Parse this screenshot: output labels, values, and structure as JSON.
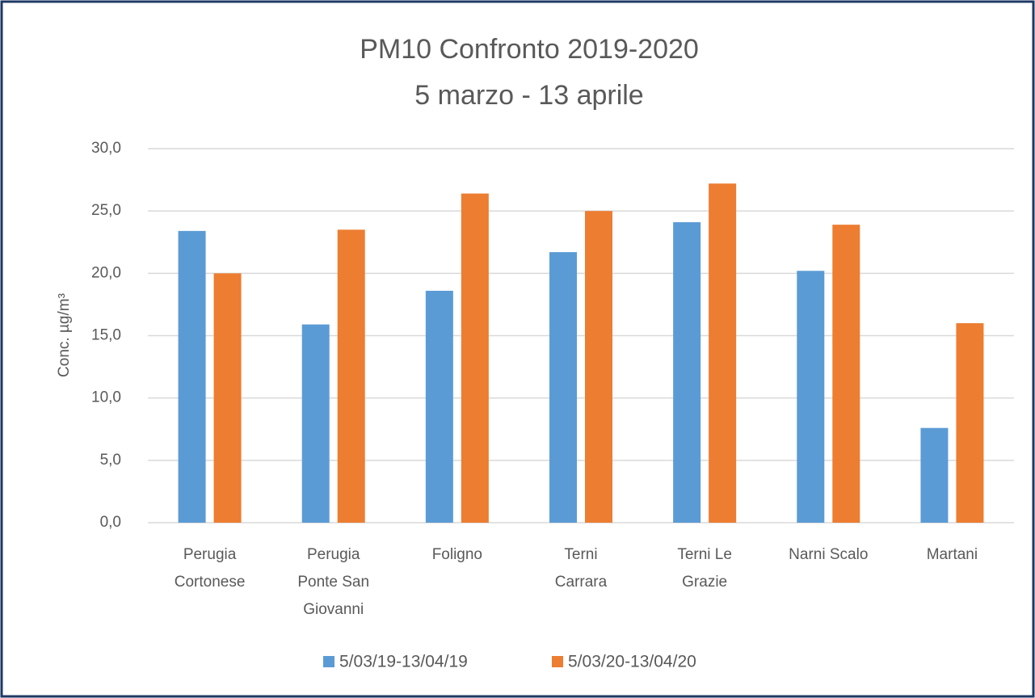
{
  "chart_data": {
    "type": "bar",
    "title": [
      "PM10 Confronto 2019-2020",
      "5 marzo - 13 aprile"
    ],
    "ylabel": "Conc. µg/m³",
    "categories": [
      [
        "Perugia",
        "Cortonese"
      ],
      [
        "Perugia",
        "Ponte San",
        "Giovanni"
      ],
      [
        "Foligno"
      ],
      [
        "Terni",
        "Carrara"
      ],
      [
        "Terni Le",
        "Grazie"
      ],
      [
        "Narni Scalo"
      ],
      [
        "Martani"
      ]
    ],
    "series": [
      {
        "name": "5/03/19-13/04/19",
        "color": "#5b9bd5",
        "values": [
          23.4,
          15.9,
          18.6,
          21.7,
          24.1,
          20.2,
          7.6
        ]
      },
      {
        "name": "5/03/20-13/04/20",
        "color": "#ed7d31",
        "values": [
          20.0,
          23.5,
          26.4,
          25.0,
          27.2,
          23.9,
          16.0
        ]
      }
    ],
    "ylim": [
      0,
      30
    ],
    "yticks": [
      {
        "value": 0,
        "label": "0,0"
      },
      {
        "value": 5,
        "label": "5,0"
      },
      {
        "value": 10,
        "label": "10,0"
      },
      {
        "value": 15,
        "label": "15,0"
      },
      {
        "value": 20,
        "label": "20,0"
      },
      {
        "value": 25,
        "label": "25,0"
      },
      {
        "value": 30,
        "label": "30,0"
      }
    ],
    "grid": true,
    "legend": "bottom"
  }
}
